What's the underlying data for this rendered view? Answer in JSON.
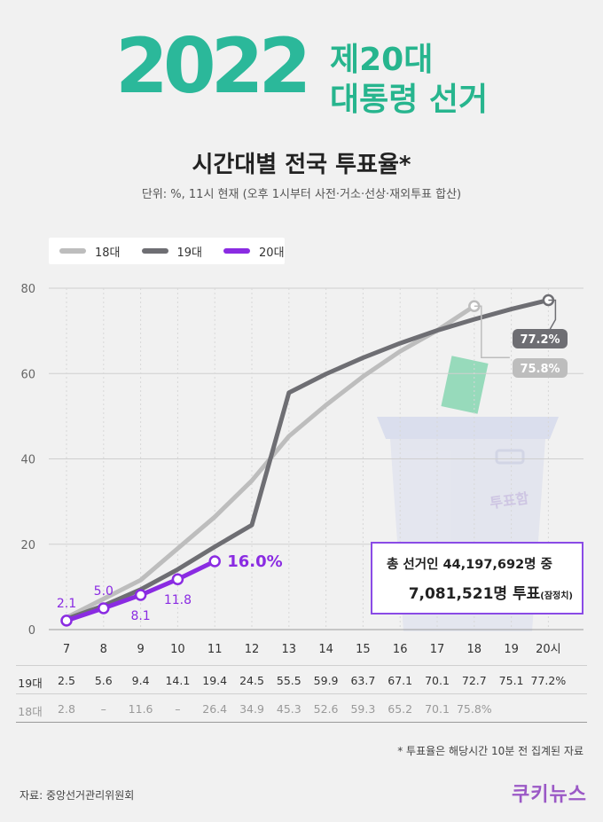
{
  "header": {
    "year": "2022",
    "title_line1": "제20대",
    "title_line2": "대통령 선거",
    "subtitle": "시간대별 전국 투표율*",
    "unit_note": "단위: %, 11시 현재 (오후 1시부터 사전·거소·선상·재외투표 합산)"
  },
  "legend": [
    "18대",
    "19대",
    "20대"
  ],
  "ballot_box_label": "투표함",
  "summary": {
    "line1": "총 선거인 44,197,692명 중",
    "line2_main": "7,081,521명 투표",
    "line2_note": "(잠정치)"
  },
  "end_labels": {
    "c20": "16.0%",
    "c19": "77.2%",
    "c18": "75.8%"
  },
  "colors": {
    "c18": "#bdbdbd",
    "c19": "#6e6e73",
    "c20": "#8a2be2",
    "accent": "#8a4be6"
  },
  "chart_data": {
    "type": "line",
    "categories": [
      "7",
      "8",
      "9",
      "10",
      "11",
      "12",
      "13",
      "14",
      "15",
      "16",
      "17",
      "18",
      "19",
      "20시"
    ],
    "ylim": [
      0,
      80
    ],
    "yticks": [
      "0",
      "20",
      "40",
      "60",
      "80"
    ],
    "grid": true,
    "series": [
      {
        "name": "18대",
        "values": [
          2.8,
          null,
          11.6,
          null,
          26.4,
          34.9,
          45.3,
          52.6,
          59.3,
          65.2,
          70.1,
          75.8,
          null,
          null
        ]
      },
      {
        "name": "19대",
        "values": [
          2.5,
          5.6,
          9.4,
          14.1,
          19.4,
          24.5,
          55.5,
          59.9,
          63.7,
          67.1,
          70.1,
          72.7,
          75.1,
          77.2
        ]
      },
      {
        "name": "20대",
        "values": [
          2.1,
          5.0,
          8.1,
          11.8,
          16.0,
          null,
          null,
          null,
          null,
          null,
          null,
          null,
          null,
          null
        ]
      }
    ],
    "point_labels_20": [
      "2.1",
      "5.0",
      "8.1",
      "11.8"
    ]
  },
  "table": {
    "rows": [
      {
        "label": "19대",
        "cells": [
          "2.5",
          "5.6",
          "9.4",
          "14.1",
          "19.4",
          "24.5",
          "55.5",
          "59.9",
          "63.7",
          "67.1",
          "70.1",
          "72.7",
          "75.1",
          "77.2%"
        ]
      },
      {
        "label": "18대",
        "cells": [
          "2.8",
          "–",
          "11.6",
          "–",
          "26.4",
          "34.9",
          "45.3",
          "52.6",
          "59.3",
          "65.2",
          "70.1",
          "75.8%",
          "",
          ""
        ]
      }
    ]
  },
  "footnote": "* 투표율은 해당시간 10분 전 집계된 자료",
  "source": "자료: 중앙선거관리위원회",
  "logo": "쿠키뉴스"
}
